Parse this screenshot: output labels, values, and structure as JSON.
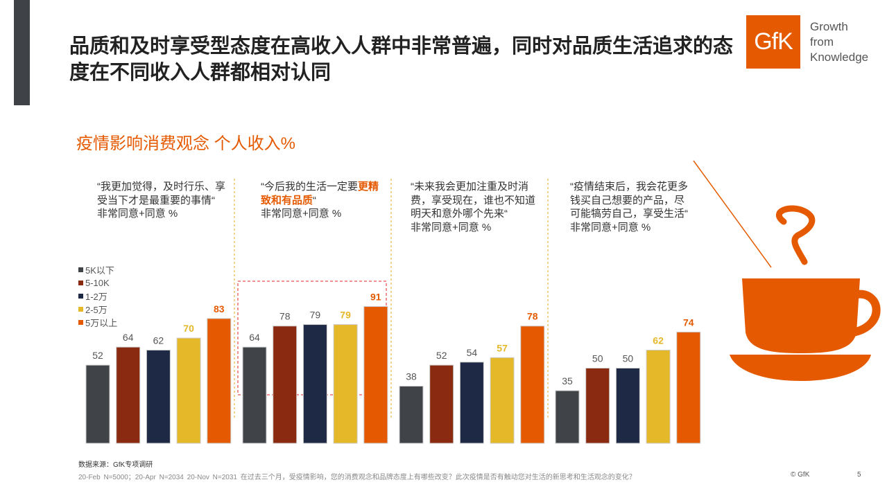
{
  "title": "品质和及时享受型态度在高收入人群中非常普遍，同时对品质生活追求的态度在不同收入人群都相对认同",
  "logo": {
    "mark": "GfK",
    "line1": "Growth",
    "line2": "from",
    "line3": "Knowledge"
  },
  "subtitle": "疫情影响消费观念 个人收入%",
  "colors": {
    "accent": "#e55a00",
    "series": [
      "#404347",
      "#8a2a10",
      "#1e2a45",
      "#e5b82a",
      "#e55a00"
    ]
  },
  "chart_data": {
    "type": "bar",
    "legend": [
      "5K以下",
      "5-10K",
      "1-2万",
      "2-5万",
      "5万以上"
    ],
    "legend_position": "left",
    "grid": false,
    "ylim": [
      0,
      100
    ],
    "panels": [
      {
        "quote": "“我更加觉得，及时行乐、享受当下才是最重要的事情“",
        "quote_highlight": "",
        "quote_tail": "",
        "measure": "非常同意+同意 %",
        "values": [
          52,
          64,
          62,
          70,
          83
        ]
      },
      {
        "quote": "“今后我的生活一定要",
        "quote_highlight": "更精致和有品质",
        "quote_tail": "“",
        "measure": "非常同意+同意 %",
        "values": [
          64,
          78,
          79,
          79,
          91
        ],
        "highlighted": true
      },
      {
        "quote": "“未来我会更加注重及时消费，享受现在，谁也不知道明天和意外哪个先来“",
        "quote_highlight": "",
        "quote_tail": "",
        "measure": "非常同意+同意 %",
        "values": [
          38,
          52,
          54,
          57,
          78
        ]
      },
      {
        "quote": "“疫情结束后，我会花更多钱买自己想要的产品，尽可能犒劳自己，享受生活“",
        "quote_highlight": "",
        "quote_tail": "",
        "measure": "非常同意+同意 %",
        "values": [
          35,
          50,
          50,
          62,
          74
        ]
      }
    ]
  },
  "footer": {
    "source": "数据来源：GfK专项调研",
    "note": "20-Feb N=5000；20-Apr N=2034    20-Nov N=2031 在过去三个月，受疫情影响，您的消费观念和品牌态度上有哪些改变？此次疫情是否有触动您对生活的新思考和生活观念的变化？",
    "copyright": "© GfK",
    "page": "5"
  }
}
